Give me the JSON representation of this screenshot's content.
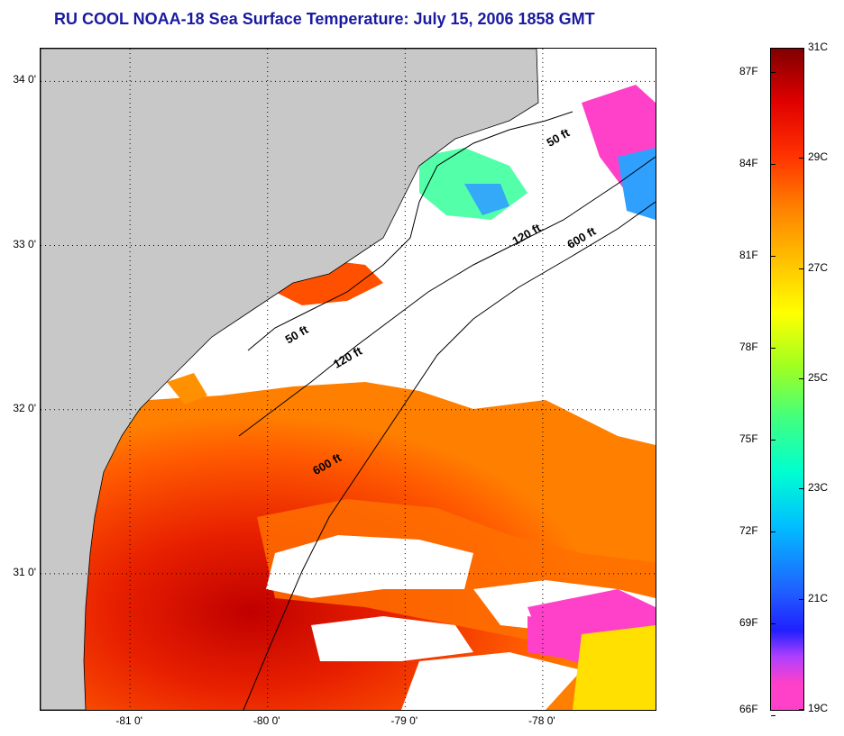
{
  "title": "RU COOL  NOAA-18  Sea Surface Temperature:  July 15, 2006 1858 GMT",
  "map": {
    "lon_range": [
      -81.65,
      -77.18
    ],
    "lat_range": [
      30.17,
      34.2
    ],
    "lat_ticks": [
      {
        "value": 34,
        "label": "34 0'"
      },
      {
        "value": 33,
        "label": "33 0'"
      },
      {
        "value": 32,
        "label": "32 0'"
      },
      {
        "value": 31,
        "label": "31 0'"
      }
    ],
    "lon_ticks": [
      {
        "value": -81,
        "label": "-81 0'"
      },
      {
        "value": -80,
        "label": "-80 0'"
      },
      {
        "value": -79,
        "label": "-79 0'"
      },
      {
        "value": -78,
        "label": "-78 0'"
      }
    ],
    "contour_labels": [
      {
        "text": "50 ft",
        "lon": -77.95,
        "lat": 33.6
      },
      {
        "text": "120 ft",
        "lon": -78.2,
        "lat": 33.0
      },
      {
        "text": "600 ft",
        "lon": -77.8,
        "lat": 32.98
      },
      {
        "text": "50 ft",
        "lon": -79.85,
        "lat": 32.4
      },
      {
        "text": "120 ft",
        "lon": -79.5,
        "lat": 32.25
      },
      {
        "text": "600 ft",
        "lon": -79.65,
        "lat": 31.6
      }
    ],
    "colors": {
      "land": "#c8c8c8",
      "cloud": "#ffffff",
      "grid": "#000000"
    }
  },
  "colorbar": {
    "celsius": [
      {
        "value": 31,
        "label": "31C"
      },
      {
        "value": 29,
        "label": "29C"
      },
      {
        "value": 27,
        "label": "27C"
      },
      {
        "value": 25,
        "label": "25C"
      },
      {
        "value": 23,
        "label": "23C"
      },
      {
        "value": 21,
        "label": "21C"
      },
      {
        "value": 19,
        "label": "19C"
      }
    ],
    "fahrenheit": [
      {
        "value": 87,
        "label": "87F"
      },
      {
        "value": 84,
        "label": "84F"
      },
      {
        "value": 81,
        "label": "81F"
      },
      {
        "value": 78,
        "label": "78F"
      },
      {
        "value": 75,
        "label": "75F"
      },
      {
        "value": 72,
        "label": "72F"
      },
      {
        "value": 69,
        "label": "69F"
      },
      {
        "value": 66,
        "label": "66F"
      }
    ],
    "range_c": [
      19,
      31
    ]
  }
}
